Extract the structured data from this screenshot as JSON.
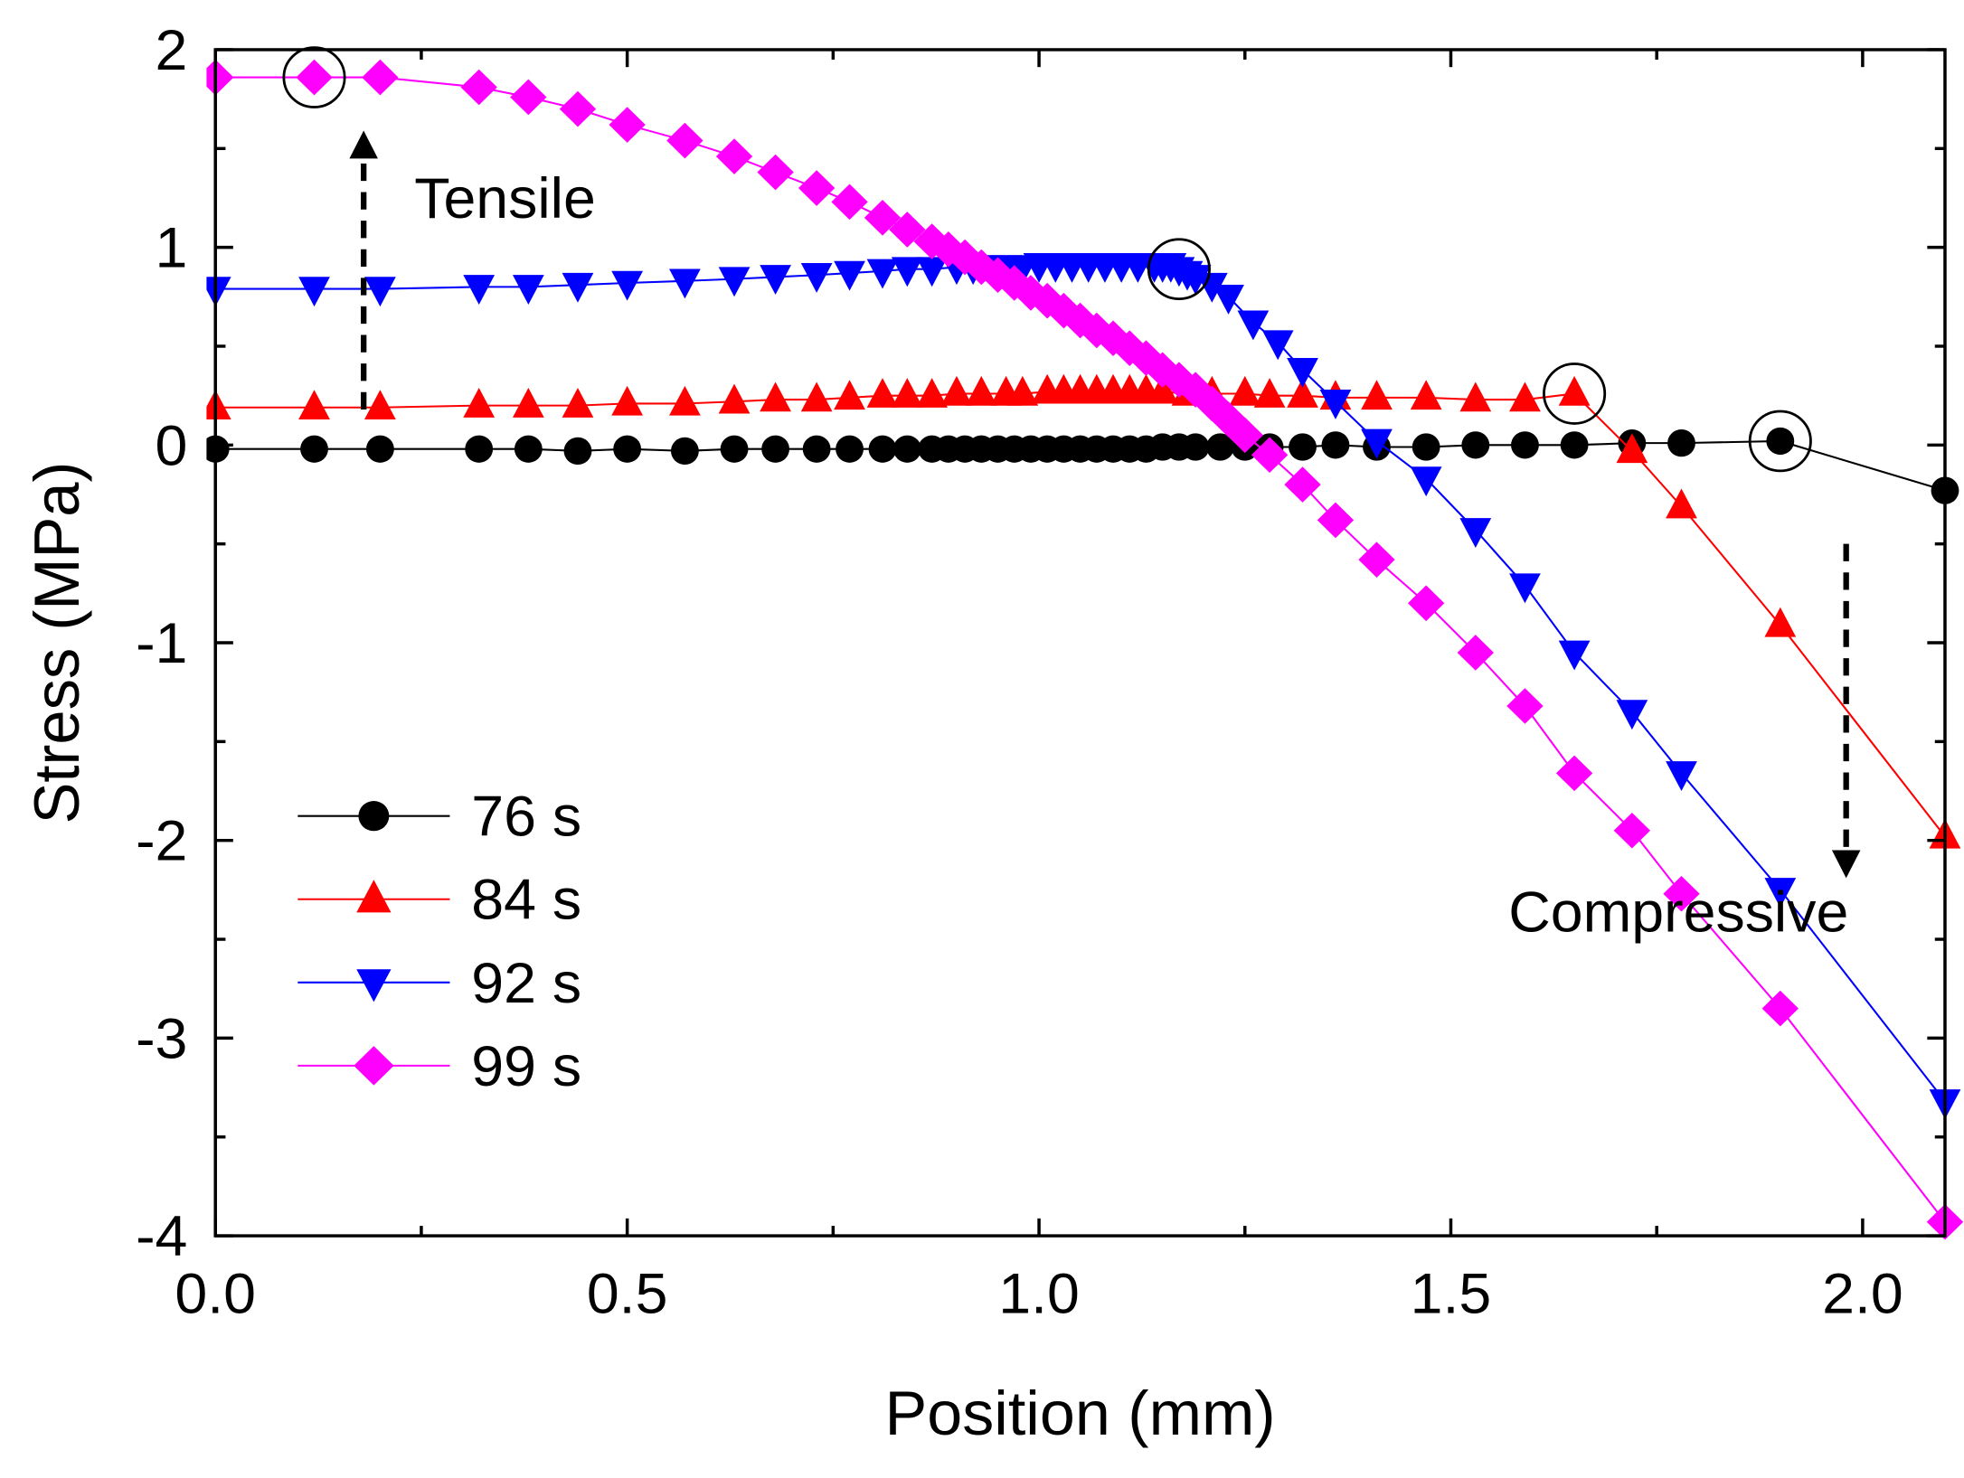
{
  "chart_data": {
    "type": "line",
    "title": "",
    "xlabel": "Position (mm)",
    "ylabel": "Stress (MPa)",
    "xlim": [
      0.0,
      2.1
    ],
    "ylim": [
      -4,
      2
    ],
    "xticks": [
      0.0,
      0.5,
      1.0,
      1.5,
      2.0
    ],
    "xtick_labels": [
      "0.0",
      "0.5",
      "1.0",
      "1.5",
      "2.0"
    ],
    "yticks": [
      -4,
      -3,
      -2,
      -1,
      0,
      1,
      2
    ],
    "ytick_labels": [
      "-4",
      "-3",
      "-2",
      "-1",
      "0",
      "1",
      "2"
    ],
    "grid": false,
    "legend_position": "bottom-left",
    "series": [
      {
        "name": "76 s",
        "color": "#000000",
        "marker": "circle",
        "x": [
          0.0,
          0.12,
          0.2,
          0.32,
          0.38,
          0.44,
          0.5,
          0.57,
          0.63,
          0.68,
          0.73,
          0.77,
          0.81,
          0.84,
          0.87,
          0.89,
          0.91,
          0.93,
          0.95,
          0.97,
          0.99,
          1.01,
          1.03,
          1.05,
          1.07,
          1.09,
          1.11,
          1.13,
          1.15,
          1.17,
          1.19,
          1.22,
          1.25,
          1.28,
          1.32,
          1.36,
          1.41,
          1.47,
          1.53,
          1.59,
          1.65,
          1.72,
          1.78,
          1.9,
          2.1
        ],
        "y": [
          -0.02,
          -0.02,
          -0.02,
          -0.02,
          -0.02,
          -0.03,
          -0.02,
          -0.03,
          -0.02,
          -0.02,
          -0.02,
          -0.02,
          -0.02,
          -0.02,
          -0.02,
          -0.02,
          -0.02,
          -0.02,
          -0.02,
          -0.02,
          -0.02,
          -0.02,
          -0.02,
          -0.02,
          -0.02,
          -0.02,
          -0.02,
          -0.02,
          -0.01,
          -0.01,
          -0.01,
          -0.01,
          -0.01,
          -0.01,
          -0.01,
          0.0,
          -0.01,
          -0.01,
          0.0,
          0.0,
          0.0,
          0.01,
          0.01,
          0.02,
          -0.23
        ]
      },
      {
        "name": "84 s",
        "color": "#ff0000",
        "marker": "triangle-up",
        "x": [
          0.0,
          0.12,
          0.2,
          0.32,
          0.38,
          0.44,
          0.5,
          0.57,
          0.63,
          0.68,
          0.73,
          0.77,
          0.81,
          0.84,
          0.87,
          0.9,
          0.93,
          0.96,
          0.98,
          1.01,
          1.03,
          1.05,
          1.07,
          1.09,
          1.11,
          1.13,
          1.15,
          1.18,
          1.21,
          1.25,
          1.28,
          1.32,
          1.36,
          1.41,
          1.47,
          1.53,
          1.59,
          1.65,
          1.72,
          1.78,
          1.9,
          2.1
        ],
        "y": [
          0.19,
          0.19,
          0.19,
          0.2,
          0.2,
          0.2,
          0.21,
          0.21,
          0.22,
          0.23,
          0.23,
          0.24,
          0.25,
          0.25,
          0.25,
          0.26,
          0.26,
          0.26,
          0.26,
          0.27,
          0.27,
          0.27,
          0.27,
          0.27,
          0.27,
          0.27,
          0.27,
          0.26,
          0.26,
          0.26,
          0.25,
          0.25,
          0.24,
          0.24,
          0.24,
          0.23,
          0.23,
          0.26,
          -0.03,
          -0.31,
          -0.91,
          -1.98
        ]
      },
      {
        "name": "92 s",
        "color": "#0000ff",
        "marker": "triangle-down",
        "x": [
          0.0,
          0.12,
          0.2,
          0.32,
          0.38,
          0.44,
          0.5,
          0.57,
          0.63,
          0.68,
          0.73,
          0.77,
          0.81,
          0.84,
          0.87,
          0.9,
          0.92,
          0.94,
          0.96,
          0.98,
          1.0,
          1.02,
          1.04,
          1.06,
          1.08,
          1.1,
          1.12,
          1.14,
          1.15,
          1.16,
          1.17,
          1.18,
          1.19,
          1.21,
          1.23,
          1.26,
          1.29,
          1.32,
          1.36,
          1.41,
          1.47,
          1.53,
          1.59,
          1.65,
          1.72,
          1.78,
          1.9,
          2.1
        ],
        "y": [
          0.79,
          0.79,
          0.79,
          0.8,
          0.8,
          0.81,
          0.82,
          0.83,
          0.84,
          0.85,
          0.86,
          0.87,
          0.88,
          0.89,
          0.89,
          0.9,
          0.9,
          0.9,
          0.9,
          0.9,
          0.91,
          0.91,
          0.91,
          0.91,
          0.91,
          0.91,
          0.91,
          0.91,
          0.91,
          0.91,
          0.89,
          0.87,
          0.85,
          0.81,
          0.75,
          0.62,
          0.52,
          0.38,
          0.22,
          0.02,
          -0.17,
          -0.43,
          -0.71,
          -1.05,
          -1.35,
          -1.66,
          -2.25,
          -3.32
        ]
      },
      {
        "name": "99 s",
        "color": "#ff00ff",
        "marker": "diamond",
        "x": [
          0.0,
          0.12,
          0.2,
          0.32,
          0.38,
          0.44,
          0.5,
          0.57,
          0.63,
          0.68,
          0.73,
          0.77,
          0.81,
          0.84,
          0.87,
          0.89,
          0.91,
          0.93,
          0.95,
          0.97,
          0.99,
          1.01,
          1.03,
          1.05,
          1.07,
          1.09,
          1.11,
          1.13,
          1.15,
          1.17,
          1.19,
          1.21,
          1.23,
          1.25,
          1.28,
          1.32,
          1.36,
          1.41,
          1.47,
          1.53,
          1.59,
          1.65,
          1.72,
          1.78,
          1.9,
          2.1
        ],
        "y": [
          1.86,
          1.86,
          1.86,
          1.81,
          1.76,
          1.7,
          1.62,
          1.54,
          1.46,
          1.38,
          1.3,
          1.23,
          1.15,
          1.09,
          1.03,
          0.99,
          0.95,
          0.9,
          0.86,
          0.82,
          0.77,
          0.73,
          0.68,
          0.63,
          0.58,
          0.54,
          0.49,
          0.44,
          0.38,
          0.33,
          0.28,
          0.21,
          0.13,
          0.05,
          -0.05,
          -0.2,
          -0.38,
          -0.58,
          -0.8,
          -1.05,
          -1.32,
          -1.66,
          -1.95,
          -2.27,
          -2.85,
          -3.93
        ]
      }
    ],
    "highlight_circles": [
      {
        "series": "99 s",
        "x": 0.12,
        "y": 1.86
      },
      {
        "series": "92 s",
        "x": 1.17,
        "y": 0.89
      },
      {
        "series": "84 s",
        "x": 1.65,
        "y": 0.26
      },
      {
        "series": "76 s",
        "x": 1.9,
        "y": 0.02
      }
    ],
    "annotations": [
      {
        "name": "tensile",
        "text": "Tensile",
        "arrow": "up",
        "arrow_x": 0.18,
        "arrow_from_y": 0.18,
        "arrow_to_y": 1.52
      },
      {
        "name": "compressive",
        "text": "Compressive",
        "arrow": "down",
        "arrow_x": 1.98,
        "arrow_from_y": -0.5,
        "arrow_to_y": -2.12
      }
    ]
  }
}
